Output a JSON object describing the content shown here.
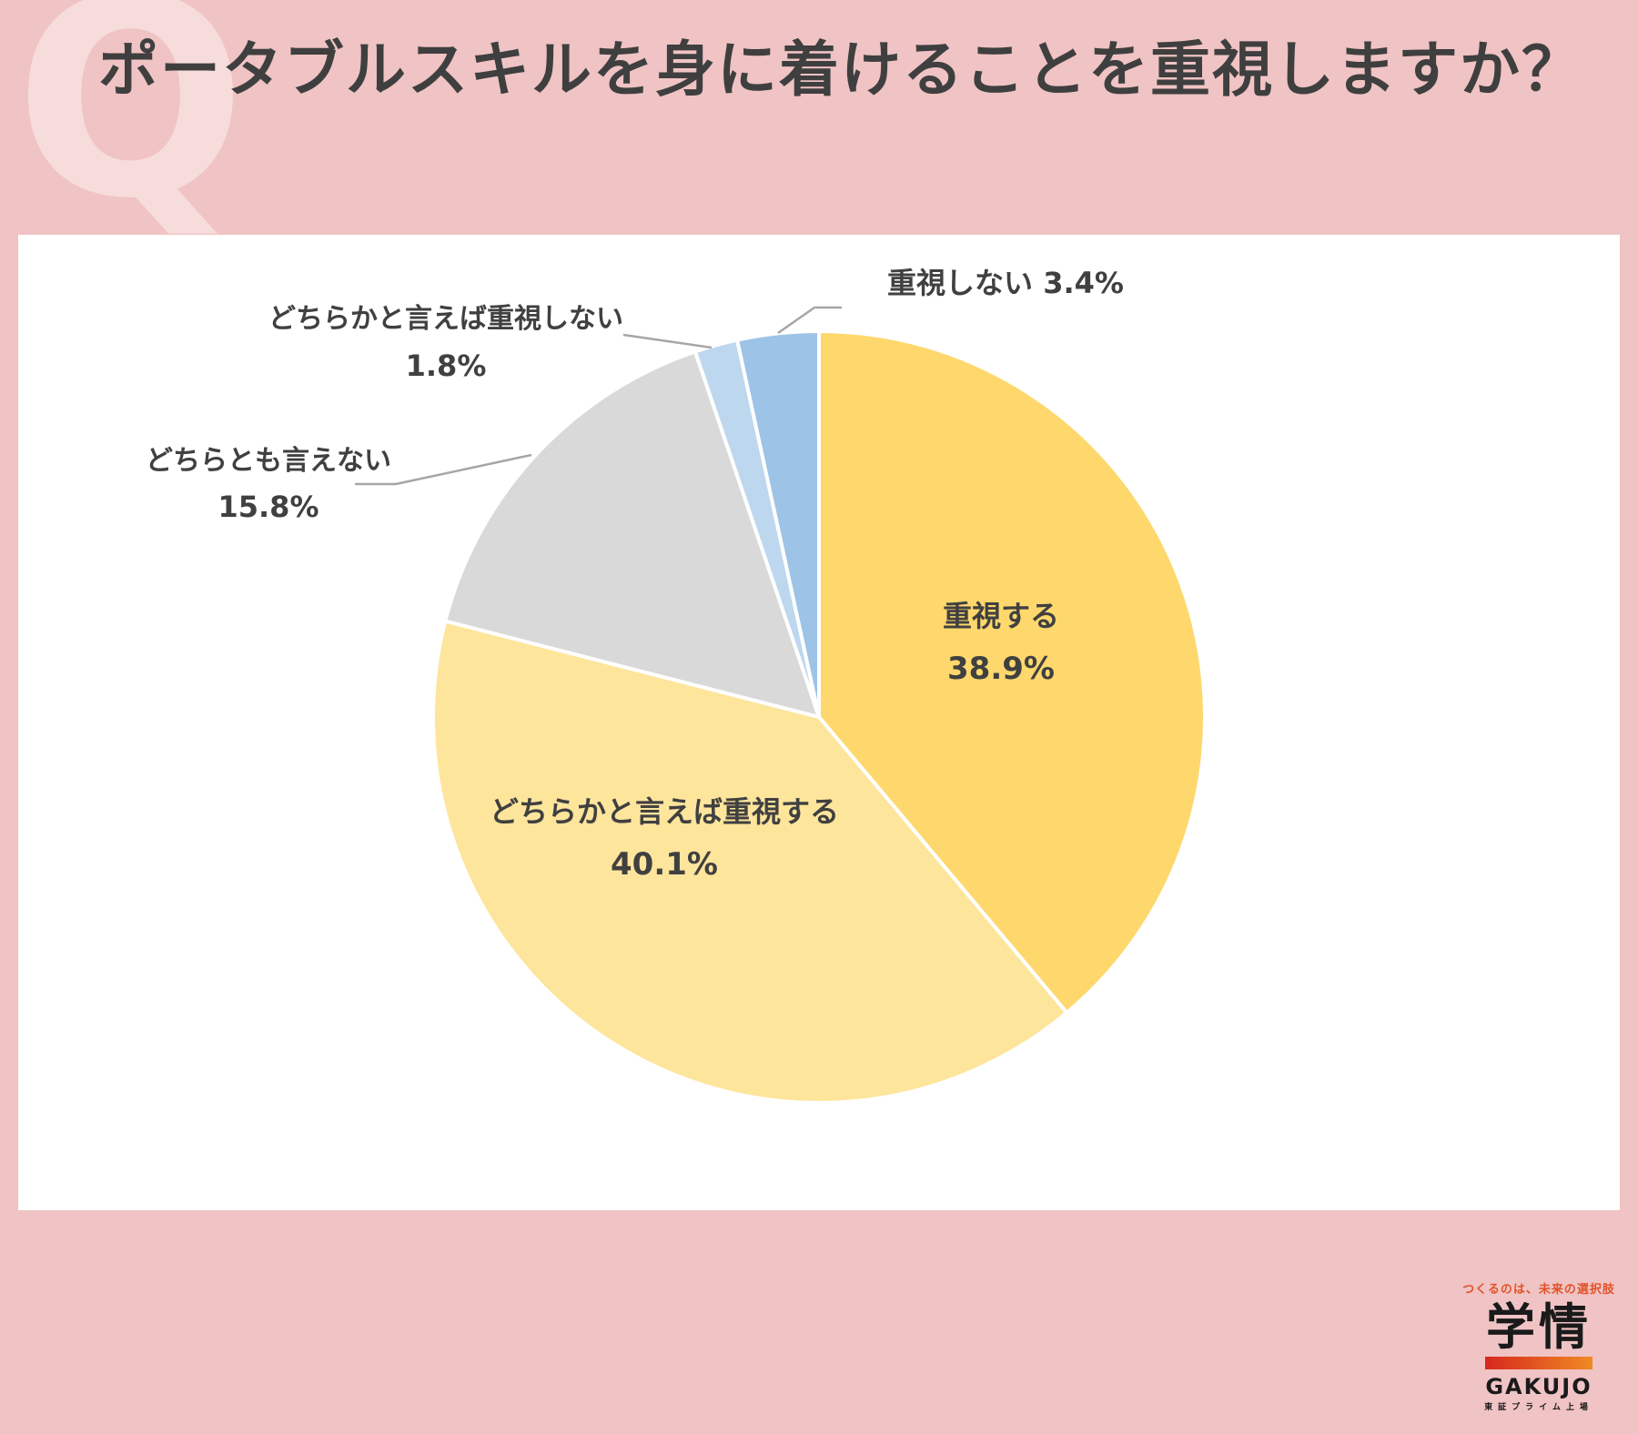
{
  "header": {
    "q_mark": "Q",
    "title": "ポータブルスキルを身に着けることを重視しますか？"
  },
  "chart_data": {
    "type": "pie",
    "start_angle_deg": 0,
    "direction": "clockwise",
    "slices": [
      {
        "label": "重視する",
        "value": 38.9,
        "value_label": "38.9%",
        "color": "#fed86d",
        "label_position": "inside"
      },
      {
        "label": "どちらかと言えば重視する",
        "value": 40.1,
        "value_label": "40.1%",
        "color": "#fee59c",
        "label_position": "inside"
      },
      {
        "label": "どちらとも言えない",
        "value": 15.8,
        "value_label": "15.8%",
        "color": "#d9d9d9",
        "label_position": "outside"
      },
      {
        "label": "どちらかと言えば重視しない",
        "value": 1.8,
        "value_label": "1.8%",
        "color": "#bdd7ee",
        "label_position": "outside"
      },
      {
        "label": "重視しない",
        "value": 3.4,
        "value_label": "3.4%",
        "color": "#9dc3e6",
        "label_position": "outside"
      }
    ]
  },
  "logo": {
    "tagline": "つくるのは、未来の選択肢",
    "kanji": "学情",
    "name": "GAKUJO",
    "sub": "東証プライム上場"
  }
}
